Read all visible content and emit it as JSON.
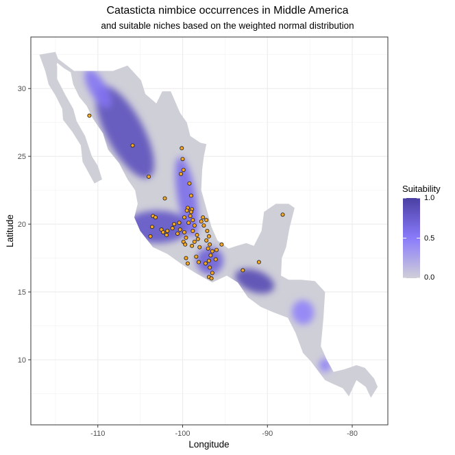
{
  "title": "Catasticta nimbice occurrences in Middle America",
  "subtitle": "and suitable niches based on the weighted normal distribution",
  "chart_data": {
    "type": "map",
    "xlabel": "Longitude",
    "ylabel": "Latitude",
    "xlim": [
      -117.9,
      -75.8
    ],
    "ylim": [
      5.2,
      33.8
    ],
    "x_ticks": [
      -110,
      -100,
      -90,
      -80
    ],
    "y_ticks": [
      10,
      15,
      20,
      25,
      30
    ],
    "x_tick_labels": [
      "-110",
      "-100",
      "-90",
      "-80"
    ],
    "y_tick_labels": [
      "10",
      "15",
      "20",
      "25",
      "30"
    ],
    "grid": true,
    "legend": {
      "title": "Suitability",
      "placement": "right",
      "ticks": [
        1.0,
        0.5,
        0.0
      ],
      "tick_labels": [
        "1.0",
        "0.5",
        "0.0"
      ],
      "colors": {
        "low": "#cfcfd8",
        "mid": "#8a7bfb",
        "high": "#4a3fa2"
      }
    },
    "land_polygon": [
      [
        -116.9,
        32.5
      ],
      [
        -115.0,
        32.7
      ],
      [
        -114.7,
        32.2
      ],
      [
        -112.8,
        31.3
      ],
      [
        -111.1,
        31.3
      ],
      [
        -108.2,
        31.3
      ],
      [
        -106.5,
        31.7
      ],
      [
        -104.9,
        30.6
      ],
      [
        -104.4,
        29.6
      ],
      [
        -103.1,
        28.9
      ],
      [
        -102.4,
        29.8
      ],
      [
        -101.4,
        29.8
      ],
      [
        -100.3,
        28.2
      ],
      [
        -99.5,
        27.5
      ],
      [
        -99.1,
        26.5
      ],
      [
        -97.9,
        26.0
      ],
      [
        -97.2,
        25.9
      ],
      [
        -97.5,
        25.0
      ],
      [
        -97.7,
        24.0
      ],
      [
        -97.8,
        22.5
      ],
      [
        -97.4,
        21.6
      ],
      [
        -96.6,
        19.8
      ],
      [
        -95.9,
        18.8
      ],
      [
        -94.6,
        18.2
      ],
      [
        -93.6,
        18.4
      ],
      [
        -92.5,
        18.6
      ],
      [
        -91.6,
        18.4
      ],
      [
        -90.7,
        19.5
      ],
      [
        -90.4,
        20.9
      ],
      [
        -89.0,
        21.5
      ],
      [
        -87.5,
        21.5
      ],
      [
        -86.8,
        21.2
      ],
      [
        -87.4,
        19.7
      ],
      [
        -87.8,
        18.3
      ],
      [
        -88.3,
        17.5
      ],
      [
        -88.4,
        16.2
      ],
      [
        -87.5,
        15.9
      ],
      [
        -86.0,
        15.9
      ],
      [
        -84.4,
        15.8
      ],
      [
        -83.2,
        15.0
      ],
      [
        -83.4,
        13.0
      ],
      [
        -83.7,
        11.0
      ],
      [
        -83.0,
        10.0
      ],
      [
        -82.2,
        9.1
      ],
      [
        -80.9,
        9.3
      ],
      [
        -79.5,
        9.6
      ],
      [
        -78.5,
        9.4
      ],
      [
        -77.4,
        8.6
      ],
      [
        -77.0,
        8.0
      ],
      [
        -77.8,
        7.2
      ],
      [
        -78.4,
        8.0
      ],
      [
        -79.5,
        8.5
      ],
      [
        -80.4,
        7.3
      ],
      [
        -81.1,
        7.9
      ],
      [
        -82.2,
        8.2
      ],
      [
        -83.2,
        8.5
      ],
      [
        -84.9,
        9.9
      ],
      [
        -85.8,
        10.5
      ],
      [
        -86.7,
        12.0
      ],
      [
        -87.6,
        13.1
      ],
      [
        -89.3,
        13.5
      ],
      [
        -90.8,
        13.9
      ],
      [
        -92.3,
        14.6
      ],
      [
        -93.5,
        15.7
      ],
      [
        -94.8,
        16.2
      ],
      [
        -96.5,
        15.7
      ],
      [
        -98.5,
        16.4
      ],
      [
        -100.0,
        17.0
      ],
      [
        -101.8,
        17.8
      ],
      [
        -103.5,
        18.3
      ],
      [
        -105.0,
        19.5
      ],
      [
        -105.7,
        20.5
      ],
      [
        -105.3,
        21.5
      ],
      [
        -105.6,
        22.5
      ],
      [
        -106.5,
        23.3
      ],
      [
        -107.5,
        24.5
      ],
      [
        -108.8,
        25.5
      ],
      [
        -109.4,
        26.7
      ],
      [
        -110.6,
        27.8
      ],
      [
        -111.3,
        28.7
      ],
      [
        -112.2,
        29.4
      ],
      [
        -112.9,
        30.3
      ],
      [
        -113.2,
        31.2
      ],
      [
        -114.0,
        31.5
      ],
      [
        -114.8,
        31.9
      ],
      [
        -115.2,
        31.0
      ]
    ],
    "baja_polygon": [
      [
        -116.9,
        32.5
      ],
      [
        -116.2,
        31.3
      ],
      [
        -115.8,
        30.3
      ],
      [
        -115.0,
        29.5
      ],
      [
        -114.2,
        28.5
      ],
      [
        -114.1,
        27.7
      ],
      [
        -113.0,
        26.8
      ],
      [
        -112.0,
        25.8
      ],
      [
        -111.8,
        24.6
      ],
      [
        -110.4,
        23.0
      ],
      [
        -109.5,
        23.3
      ],
      [
        -110.0,
        24.3
      ],
      [
        -110.7,
        25.0
      ],
      [
        -111.5,
        26.5
      ],
      [
        -112.5,
        27.6
      ],
      [
        -112.9,
        28.5
      ],
      [
        -113.8,
        29.5
      ],
      [
        -114.8,
        30.7
      ],
      [
        -114.8,
        31.6
      ],
      [
        -115.1,
        32.4
      ]
    ],
    "high_suitability_zones": [
      {
        "lon": -106.8,
        "lat": 26.8,
        "rx": 2.2,
        "ry": 3.8,
        "rotate": -28,
        "value": 0.85
      },
      {
        "lon": -110.0,
        "lat": 30.0,
        "rx": 1.0,
        "ry": 1.6,
        "rotate": -30,
        "value": 0.55
      },
      {
        "lon": -103.0,
        "lat": 19.8,
        "rx": 3.8,
        "ry": 1.2,
        "rotate": 0,
        "value": 0.8
      },
      {
        "lon": -99.5,
        "lat": 22.0,
        "rx": 1.1,
        "ry": 3.0,
        "rotate": -10,
        "value": 0.6
      },
      {
        "lon": -96.8,
        "lat": 17.3,
        "rx": 1.6,
        "ry": 1.0,
        "rotate": 0,
        "value": 0.7
      },
      {
        "lon": -91.5,
        "lat": 15.8,
        "rx": 2.4,
        "ry": 0.8,
        "rotate": 20,
        "value": 0.9
      },
      {
        "lon": -85.8,
        "lat": 13.5,
        "rx": 1.3,
        "ry": 0.9,
        "rotate": -10,
        "value": 0.45
      },
      {
        "lon": -83.2,
        "lat": 9.6,
        "rx": 0.7,
        "ry": 0.5,
        "rotate": 0,
        "value": 0.45
      }
    ],
    "occurrences": [
      [
        -111.0,
        28.0
      ],
      [
        -105.9,
        25.8
      ],
      [
        -104.0,
        23.5
      ],
      [
        -102.1,
        21.9
      ],
      [
        -100.1,
        25.6
      ],
      [
        -100.0,
        24.8
      ],
      [
        -99.9,
        24.0
      ],
      [
        -100.2,
        23.7
      ],
      [
        -99.2,
        23.0
      ],
      [
        -99.0,
        22.1
      ],
      [
        -103.5,
        20.6
      ],
      [
        -103.2,
        20.5
      ],
      [
        -103.6,
        19.8
      ],
      [
        -103.8,
        19.1
      ],
      [
        -102.5,
        19.6
      ],
      [
        -102.3,
        19.4
      ],
      [
        -101.8,
        19.5
      ],
      [
        -101.9,
        19.2
      ],
      [
        -101.2,
        19.7
      ],
      [
        -101.0,
        20.0
      ],
      [
        -100.6,
        19.3
      ],
      [
        -100.3,
        19.6
      ],
      [
        -99.8,
        19.4
      ],
      [
        -99.6,
        19.0
      ],
      [
        -99.9,
        18.7
      ],
      [
        -99.7,
        18.5
      ],
      [
        -99.3,
        20.1
      ],
      [
        -99.1,
        20.6
      ],
      [
        -98.9,
        21.1
      ],
      [
        -99.4,
        21.2
      ],
      [
        -99.0,
        20.9
      ],
      [
        -98.8,
        20.3
      ],
      [
        -98.6,
        19.9
      ],
      [
        -98.8,
        19.5
      ],
      [
        -98.3,
        19.2
      ],
      [
        -98.2,
        18.9
      ],
      [
        -98.6,
        18.7
      ],
      [
        -98.9,
        18.4
      ],
      [
        -99.5,
        21.0
      ],
      [
        -99.8,
        20.5
      ],
      [
        -100.4,
        20.1
      ],
      [
        -97.8,
        20.2
      ],
      [
        -97.6,
        20.5
      ],
      [
        -97.2,
        20.3
      ],
      [
        -97.5,
        19.9
      ],
      [
        -97.1,
        19.5
      ],
      [
        -96.9,
        19.1
      ],
      [
        -97.2,
        18.8
      ],
      [
        -96.8,
        18.5
      ],
      [
        -97.0,
        18.2
      ],
      [
        -96.5,
        18.0
      ],
      [
        -96.7,
        17.7
      ],
      [
        -96.9,
        17.3
      ],
      [
        -97.3,
        17.1
      ],
      [
        -96.8,
        16.8
      ],
      [
        -96.5,
        16.4
      ],
      [
        -96.9,
        16.1
      ],
      [
        -96.6,
        16.0
      ],
      [
        -96.1,
        17.4
      ],
      [
        -96.0,
        18.1
      ],
      [
        -95.4,
        18.5
      ],
      [
        -98.0,
        18.3
      ],
      [
        -98.4,
        17.6
      ],
      [
        -98.1,
        17.2
      ],
      [
        -99.6,
        17.5
      ],
      [
        -99.4,
        17.1
      ],
      [
        -92.9,
        16.6
      ],
      [
        -91.0,
        17.2
      ],
      [
        -88.2,
        20.7
      ]
    ]
  }
}
